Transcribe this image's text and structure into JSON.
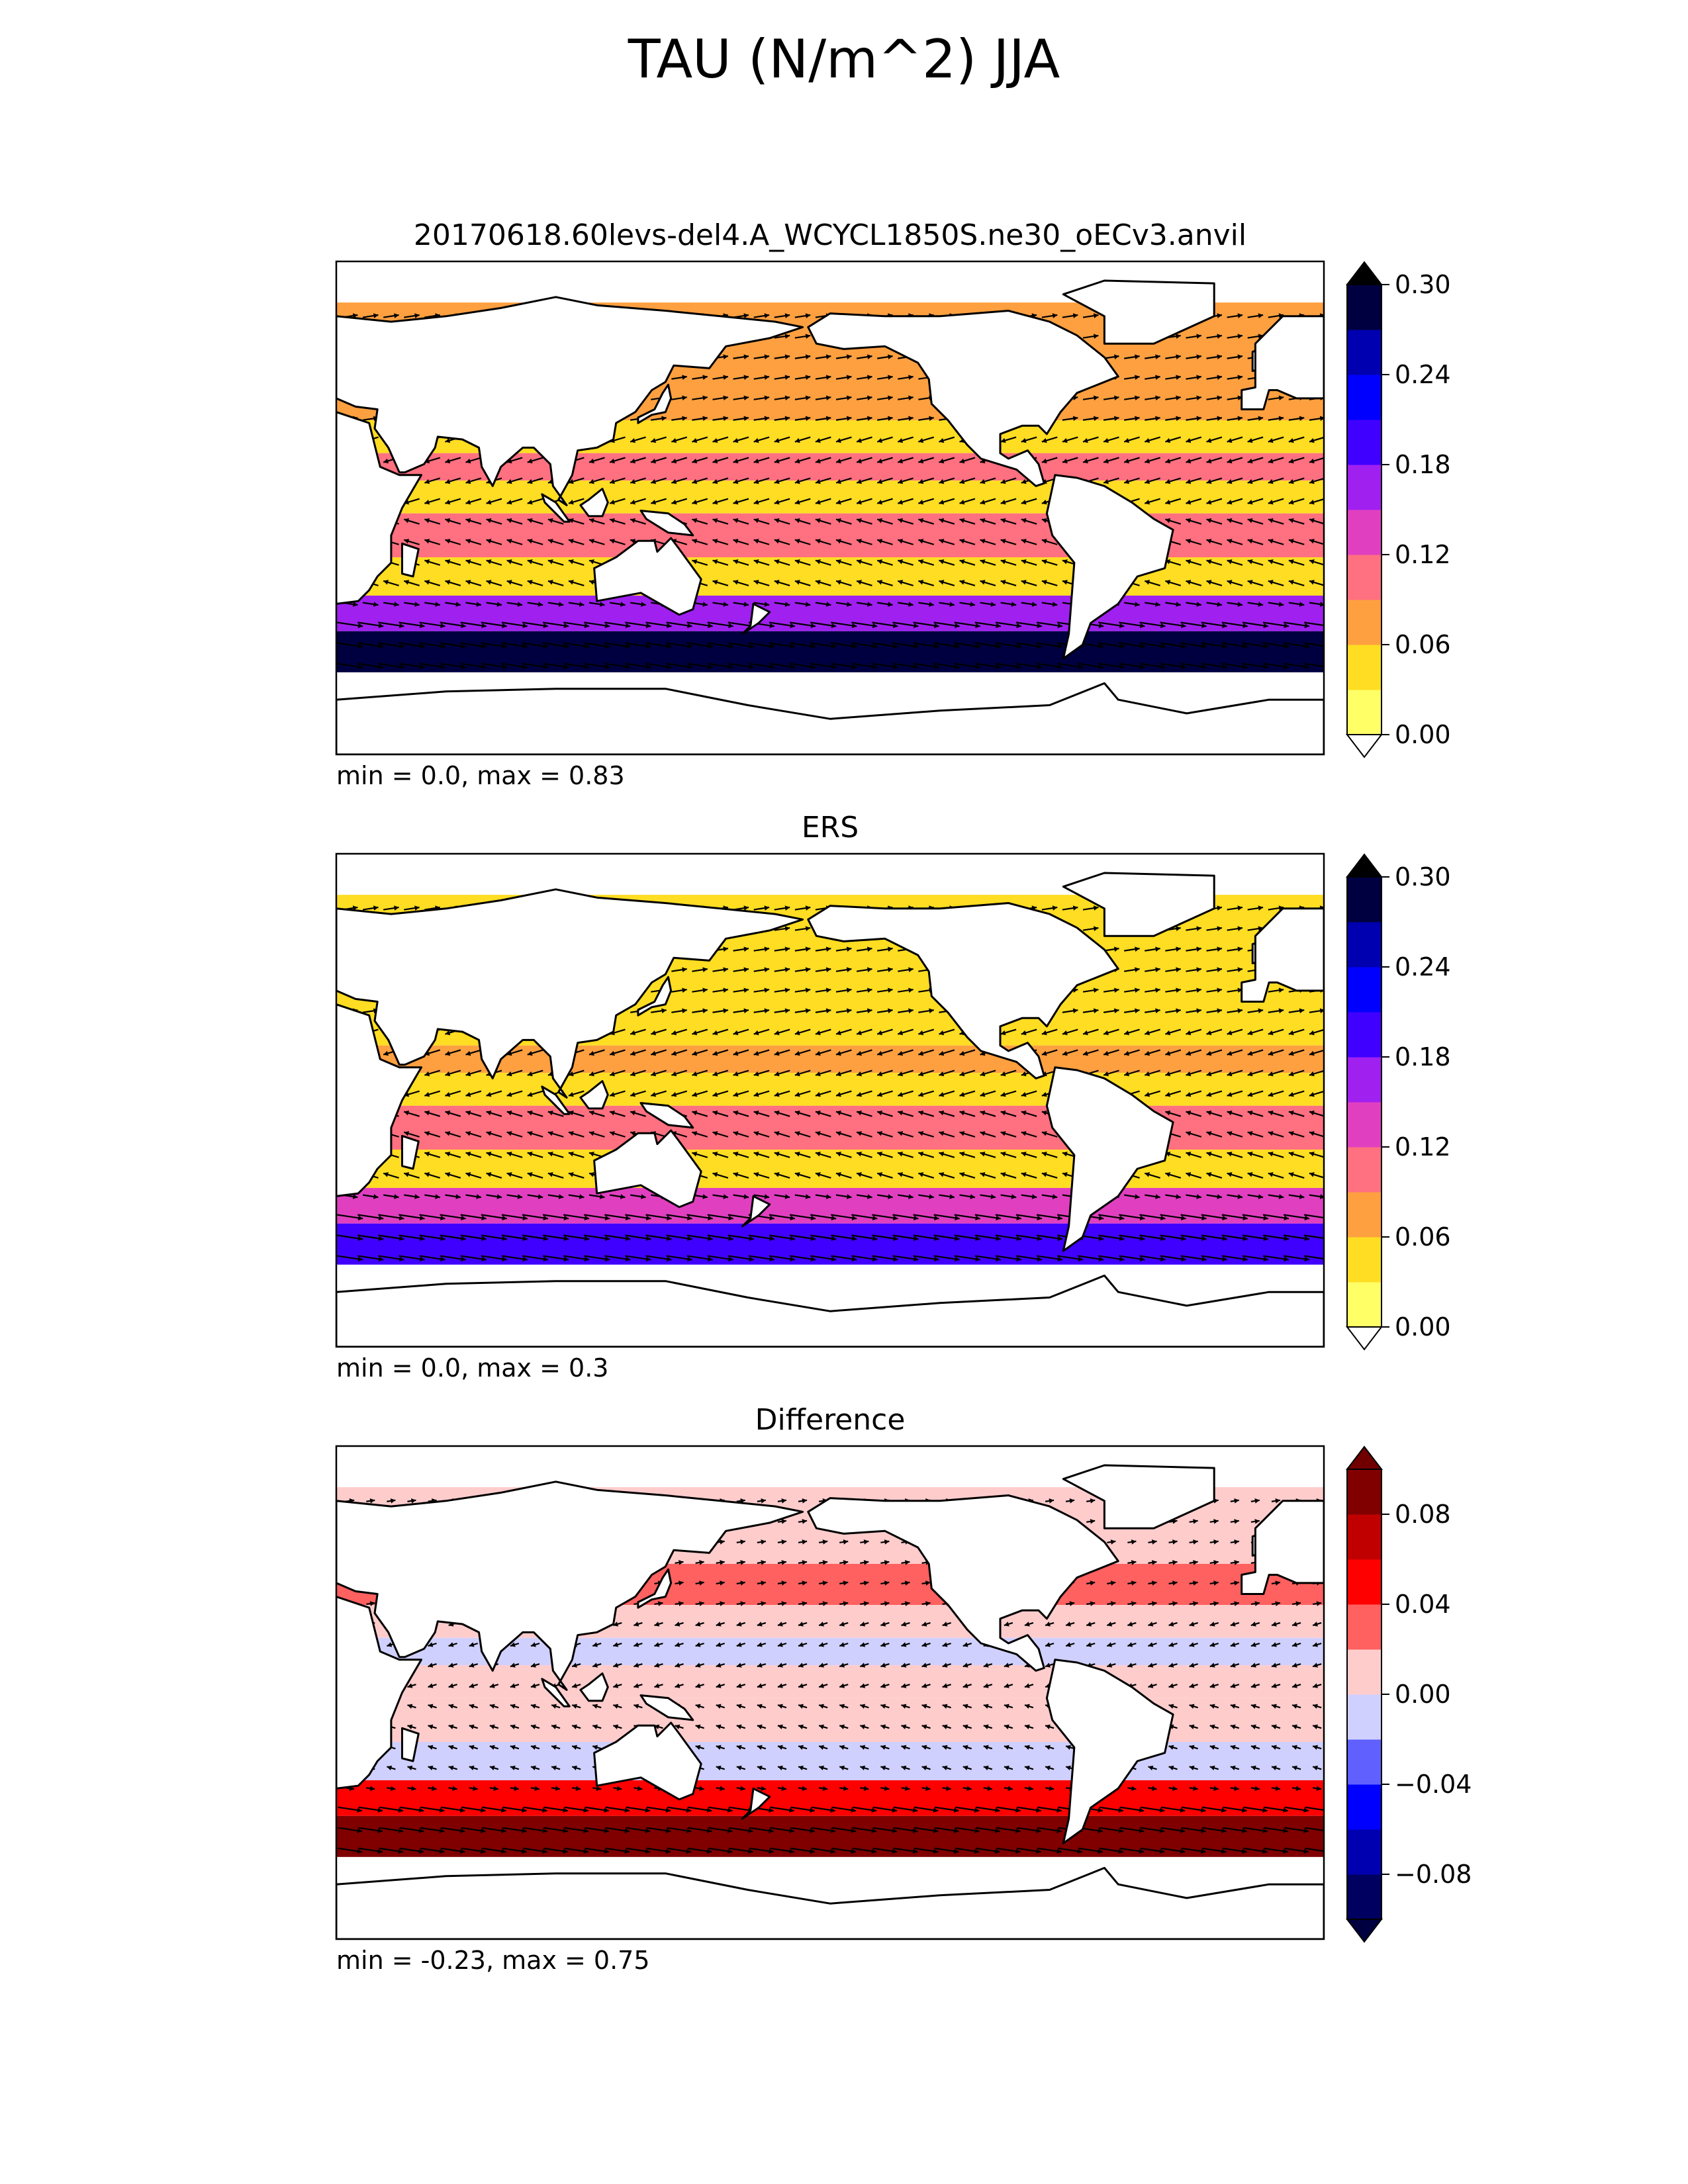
{
  "figure": {
    "title": "TAU (N/m^2) JJA"
  },
  "colors": {
    "sequential": [
      "#ffff66",
      "#ffdd22",
      "#ffa040",
      "#ff7080",
      "#e040c0",
      "#a020f0",
      "#4000ff",
      "#0000ff",
      "#0000b0",
      "#000040"
    ],
    "sequential_under": "#ffffff",
    "sequential_over": "#000000",
    "diverging": [
      "#000060",
      "#0000b0",
      "#0000ff",
      "#6060ff",
      "#d0d0ff",
      "#ffcccc",
      "#ff6060",
      "#ff0000",
      "#c00000",
      "#800000"
    ],
    "diverging_under": "#000040",
    "diverging_over": "#700000",
    "land": "#ffffff",
    "coastline": "#000000"
  },
  "chart_data": [
    {
      "type": "heatmap",
      "title": "20170618.60levs-del4.A_WCYCL1850S.ne30_oECv3.anvil",
      "stats": "min = 0.0, max = 0.83",
      "colorbar": {
        "levels": [
          0.0,
          0.03,
          0.06,
          0.09,
          0.12,
          0.15,
          0.18,
          0.21,
          0.24,
          0.27,
          0.3
        ],
        "tick_values": [
          0.0,
          0.06,
          0.12,
          0.18,
          0.24,
          0.3
        ],
        "tick_labels": [
          "0.00",
          "0.06",
          "0.12",
          "0.18",
          "0.24",
          "0.30"
        ],
        "extend": "both"
      },
      "palette": "sequential",
      "vectors": "wind stress arrows",
      "bands": [
        {
          "lat": 55,
          "value": 0.06
        },
        {
          "lat": 40,
          "value": 0.07
        },
        {
          "lat": 25,
          "value": 0.05
        },
        {
          "lat": 15,
          "value": 0.09
        },
        {
          "lat": 5,
          "value": 0.05
        },
        {
          "lat": -10,
          "value": 0.11
        },
        {
          "lat": -25,
          "value": 0.05
        },
        {
          "lat": -40,
          "value": 0.16
        },
        {
          "lat": -50,
          "value": 0.3
        }
      ]
    },
    {
      "type": "heatmap",
      "title": "ERS",
      "stats": "min = 0.0, max = 0.3",
      "colorbar": {
        "levels": [
          0.0,
          0.03,
          0.06,
          0.09,
          0.12,
          0.15,
          0.18,
          0.21,
          0.24,
          0.27,
          0.3
        ],
        "tick_values": [
          0.0,
          0.06,
          0.12,
          0.18,
          0.24,
          0.3
        ],
        "tick_labels": [
          "0.00",
          "0.06",
          "0.12",
          "0.18",
          "0.24",
          "0.30"
        ],
        "extend": "both"
      },
      "palette": "sequential",
      "vectors": "wind stress arrows",
      "bands": [
        {
          "lat": 55,
          "value": 0.04
        },
        {
          "lat": 40,
          "value": 0.05
        },
        {
          "lat": 25,
          "value": 0.03
        },
        {
          "lat": 15,
          "value": 0.07
        },
        {
          "lat": 5,
          "value": 0.03
        },
        {
          "lat": -10,
          "value": 0.1
        },
        {
          "lat": -25,
          "value": 0.04
        },
        {
          "lat": -40,
          "value": 0.12
        },
        {
          "lat": -50,
          "value": 0.2
        }
      ]
    },
    {
      "type": "heatmap",
      "title": "Difference",
      "stats": "min = -0.23, max = 0.75",
      "colorbar": {
        "levels": [
          -0.1,
          -0.08,
          -0.06,
          -0.04,
          -0.02,
          0.0,
          0.02,
          0.04,
          0.06,
          0.08,
          0.1
        ],
        "tick_values": [
          -0.08,
          -0.04,
          0.0,
          0.04,
          0.08
        ],
        "tick_labels": [
          "−0.08",
          "−0.04",
          "0.00",
          "0.04",
          "0.08"
        ],
        "extend": "both"
      },
      "palette": "diverging",
      "vectors": "wind stress difference arrows",
      "bands": [
        {
          "lat": 55,
          "value": 0.01
        },
        {
          "lat": 40,
          "value": 0.03
        },
        {
          "lat": 25,
          "value": 0.01
        },
        {
          "lat": 15,
          "value": -0.01
        },
        {
          "lat": 5,
          "value": 0.01
        },
        {
          "lat": -10,
          "value": 0.01
        },
        {
          "lat": -25,
          "value": -0.01
        },
        {
          "lat": -40,
          "value": 0.05
        },
        {
          "lat": -50,
          "value": 0.09
        }
      ]
    }
  ]
}
